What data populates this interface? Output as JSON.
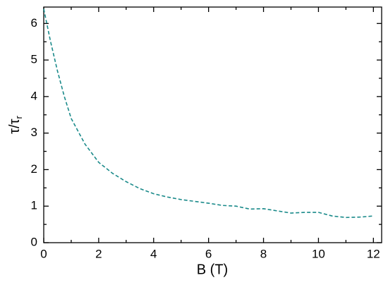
{
  "chart_data": {
    "type": "line",
    "xlabel": "B (T)",
    "ylabel": "τ/τ",
    "ylabel_sub": "r",
    "x": [
      0,
      0.25,
      0.5,
      0.75,
      1,
      1.5,
      2,
      2.5,
      3,
      3.5,
      4,
      4.5,
      5,
      5.5,
      6,
      6.5,
      7,
      7.5,
      8,
      8.5,
      9,
      9.5,
      10,
      10.5,
      11,
      11.5,
      12
    ],
    "series": [
      {
        "color": "#1a8a8a",
        "values": [
          6.4,
          5.5,
          4.7,
          4.0,
          3.4,
          2.7,
          2.2,
          1.9,
          1.67,
          1.48,
          1.34,
          1.25,
          1.18,
          1.13,
          1.08,
          1.02,
          1.0,
          0.92,
          0.93,
          0.87,
          0.81,
          0.83,
          0.83,
          0.73,
          0.69,
          0.7,
          0.73
        ]
      }
    ],
    "xlim": [
      0,
      12.3
    ],
    "ylim": [
      0,
      6.45
    ],
    "xticks": [
      0,
      2,
      4,
      6,
      8,
      10,
      12
    ],
    "yticks": [
      0,
      1,
      2,
      3,
      4,
      5,
      6
    ],
    "xminorticks": [
      1,
      3,
      5,
      7,
      9,
      11
    ],
    "yminorticks": [
      0.5,
      1.5,
      2.5,
      3.5,
      4.5,
      5.5
    ],
    "dashed": true
  }
}
